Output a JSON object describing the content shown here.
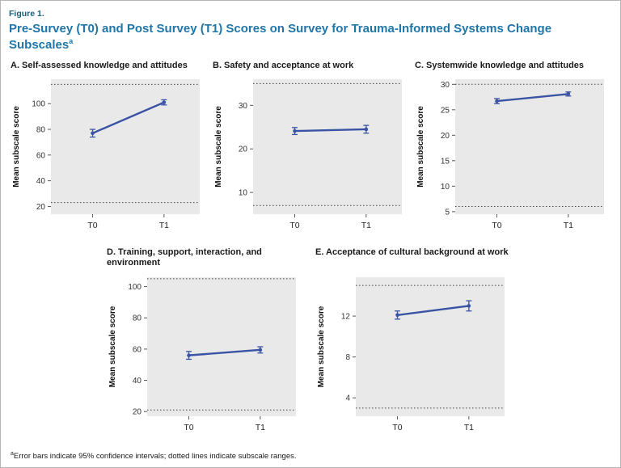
{
  "figure_label": "Figure 1.",
  "header": {
    "title": "Pre-Survey (T0) and Post Survey (T1) Scores on Survey for Trauma-Informed Systems Change Subscales",
    "superscript": "a"
  },
  "footnote": {
    "superscript": "a",
    "text": "Error bars indicate 95% confidence intervals; dotted lines indicate subscale ranges."
  },
  "colors": {
    "line": "#3a53a4",
    "plot_bg": "#e9e9e9",
    "range_line": "#444444",
    "tick": "#555555",
    "tick_label": "#333333",
    "figure_label": "#1a5e7d",
    "title": "#2076a8"
  },
  "chart_data": [
    {
      "type": "line",
      "title": "A. Self-assessed knowledge and attitudes",
      "ylabel": "Mean subscale score",
      "categories": [
        "T0",
        "T1"
      ],
      "values": [
        77,
        101
      ],
      "errors": [
        3,
        2
      ],
      "yticks": [
        20,
        40,
        60,
        80,
        100
      ],
      "ylim": [
        14,
        119
      ],
      "range_lines": [
        23,
        115
      ],
      "legend": "none",
      "grid": "off"
    },
    {
      "type": "line",
      "title": "B. Safety and acceptance at work",
      "ylabel": "Mean subscale score",
      "categories": [
        "T0",
        "T1"
      ],
      "values": [
        24.1,
        24.5
      ],
      "errors": [
        0.8,
        0.9
      ],
      "yticks": [
        10,
        20,
        30
      ],
      "ylim": [
        5,
        36
      ],
      "range_lines": [
        7,
        35
      ],
      "legend": "none",
      "grid": "off"
    },
    {
      "type": "line",
      "title": "C. Systemwide knowledge and attitudes",
      "ylabel": "Mean subscale score",
      "categories": [
        "T0",
        "T1"
      ],
      "values": [
        26.7,
        28.1
      ],
      "errors": [
        0.5,
        0.4
      ],
      "yticks": [
        5,
        10,
        15,
        20,
        25,
        30
      ],
      "ylim": [
        4.5,
        31
      ],
      "range_lines": [
        6,
        30
      ],
      "legend": "none",
      "grid": "off"
    },
    {
      "type": "line",
      "title": "D. Training, support, interaction, and environment",
      "ylabel": "Mean subscale score",
      "categories": [
        "T0",
        "T1"
      ],
      "values": [
        56,
        59.5
      ],
      "errors": [
        2.5,
        2
      ],
      "yticks": [
        20,
        40,
        60,
        80,
        100
      ],
      "ylim": [
        17,
        106
      ],
      "range_lines": [
        21,
        105
      ],
      "legend": "none",
      "grid": "off"
    },
    {
      "type": "line",
      "title": "E. Acceptance of cultural background at work",
      "ylabel": "Mean subscale score",
      "categories": [
        "T0",
        "T1"
      ],
      "values": [
        12.1,
        13.0
      ],
      "errors": [
        0.4,
        0.5
      ],
      "yticks": [
        4,
        8,
        12
      ],
      "ylim": [
        2.2,
        15.8
      ],
      "range_lines": [
        3,
        15
      ],
      "legend": "none",
      "grid": "off"
    }
  ]
}
